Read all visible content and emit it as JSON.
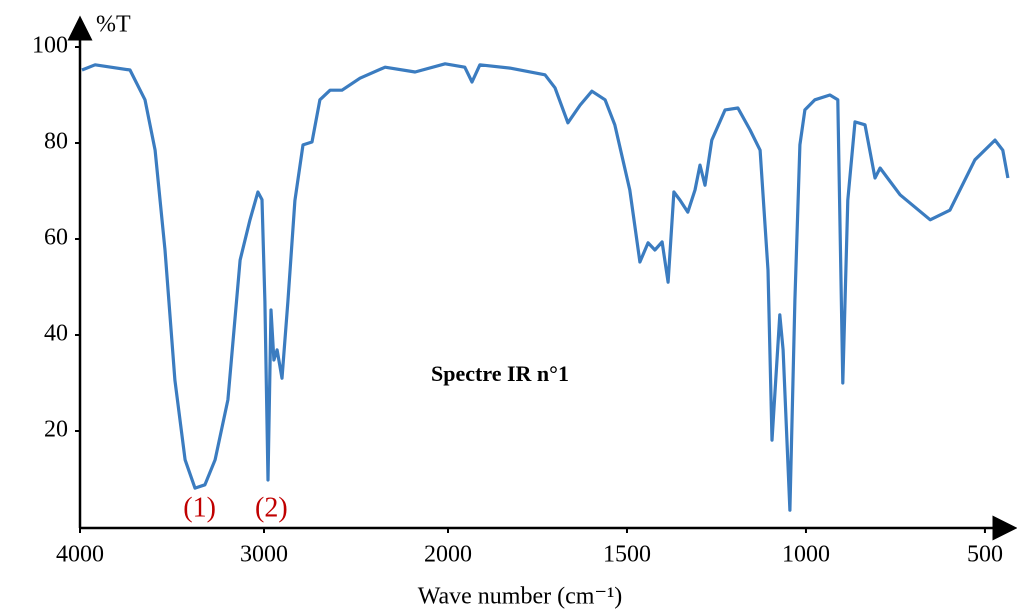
{
  "chart_data": {
    "type": "line",
    "title": "Spectre IR n°1",
    "x_label": "Wave number (cm⁻¹)",
    "y_label": "%T",
    "xlim": [
      4000,
      430
    ],
    "x_scale_break": 2000,
    "xticks": [
      4000,
      3000,
      2000,
      1500,
      1000,
      500
    ],
    "ylim": [
      0,
      100
    ],
    "yticks": [
      20,
      40,
      60,
      80,
      100
    ],
    "grid": false,
    "annotations": [
      {
        "text": "(1)",
        "x": 3350
      },
      {
        "text": "(2)",
        "x": 2960
      }
    ],
    "annotation_color": "#c00000",
    "series": [
      {
        "name": "%T",
        "color": "#3b7cc0",
        "x": [
          3989,
          3918,
          3728,
          3647,
          3592,
          3538,
          3484,
          3429,
          3375,
          3321,
          3266,
          3196,
          3130,
          3076,
          3033,
          3011,
          2995,
          2978,
          2962,
          2946,
          2929,
          2902,
          2870,
          2832,
          2788,
          2739,
          2696,
          2641,
          2576,
          2478,
          2342,
          2179,
          2016,
          1953,
          1933,
          1911,
          1827,
          1729,
          1701,
          1665,
          1631,
          1598,
          1561,
          1534,
          1492,
          1464,
          1441,
          1422,
          1402,
          1385,
          1369,
          1352,
          1330,
          1310,
          1296,
          1282,
          1263,
          1226,
          1190,
          1156,
          1128,
          1106,
          1095,
          1073,
          1064,
          1045,
          1031,
          1017,
          1003,
          975,
          933,
          911,
          897,
          883,
          863,
          835,
          807,
          793,
          737,
          653,
          598,
          528,
          472,
          450,
          436
        ],
        "values": [
          95.2,
          96.3,
          95.2,
          89,
          78.5,
          57.7,
          30.6,
          14,
          8.1,
          8.8,
          14,
          26.5,
          55.6,
          64,
          69.8,
          68.2,
          47,
          9.8,
          45.2,
          34.8,
          36.9,
          31,
          47,
          68,
          79.6,
          80.2,
          89,
          91,
          91,
          93.5,
          95.8,
          94.8,
          96.5,
          95.8,
          92.7,
          96.3,
          95.6,
          94.2,
          91.5,
          84.2,
          87.9,
          90.8,
          89,
          83.8,
          70.2,
          55.2,
          59.2,
          57.7,
          59.4,
          51,
          69.8,
          68.1,
          65.6,
          70.2,
          75.4,
          71.2,
          80.6,
          86.9,
          87.3,
          82.7,
          78.5,
          53.5,
          18.1,
          44.2,
          36.9,
          3.5,
          47.3,
          79.6,
          86.9,
          89,
          90,
          89,
          30,
          68.1,
          84.4,
          83.8,
          72.7,
          74.8,
          69.2,
          64,
          66,
          76.5,
          80.6,
          78.5,
          72.7
        ]
      }
    ]
  }
}
